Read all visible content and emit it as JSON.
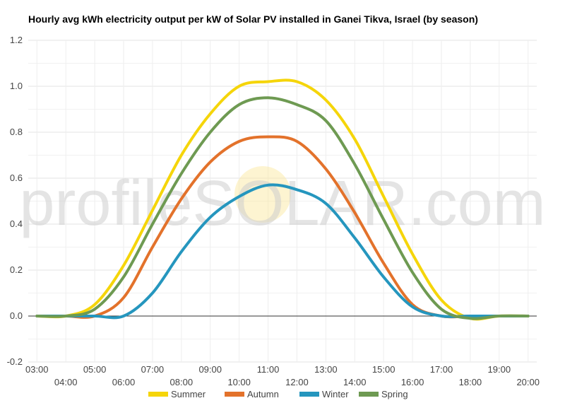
{
  "chart_data": {
    "type": "line",
    "title": "Hourly avg kWh electricity output per kW of Solar PV installed in Ganei Tikva, Israel (by season)",
    "xlabel": "",
    "ylabel": "",
    "watermark": "profileSOLAR.com",
    "ylim": [
      -0.2,
      1.2
    ],
    "yticks": [
      "-0.2",
      "0.0",
      "0.2",
      "0.4",
      "0.6",
      "0.8",
      "1.0",
      "1.2"
    ],
    "x_hours": [
      3,
      4,
      5,
      6,
      7,
      8,
      9,
      10,
      11,
      12,
      13,
      14,
      15,
      16,
      17,
      18,
      19,
      20
    ],
    "xtick_labels": [
      "03:00",
      "04:00",
      "05:00",
      "06:00",
      "07:00",
      "08:00",
      "09:00",
      "10:00",
      "11:00",
      "12:00",
      "13:00",
      "14:00",
      "15:00",
      "16:00",
      "17:00",
      "18:00",
      "19:00",
      "20:00"
    ],
    "grid": true,
    "legend_position": "bottom",
    "series": [
      {
        "name": "Summer",
        "color": "#f5d50a",
        "values": [
          0.0,
          0.0,
          0.05,
          0.22,
          0.46,
          0.7,
          0.88,
          1.0,
          1.02,
          1.02,
          0.94,
          0.77,
          0.52,
          0.27,
          0.07,
          -0.01,
          0.0,
          0.0
        ]
      },
      {
        "name": "Autumn",
        "color": "#e3722b",
        "values": [
          0.0,
          0.0,
          0.0,
          0.08,
          0.3,
          0.51,
          0.67,
          0.76,
          0.78,
          0.76,
          0.64,
          0.45,
          0.23,
          0.05,
          0.0,
          0.0,
          0.0,
          0.0
        ]
      },
      {
        "name": "Winter",
        "color": "#2596be",
        "values": [
          0.0,
          0.0,
          0.0,
          0.0,
          0.1,
          0.28,
          0.43,
          0.52,
          0.57,
          0.55,
          0.49,
          0.34,
          0.17,
          0.04,
          0.0,
          0.0,
          0.0,
          0.0
        ]
      },
      {
        "name": "Spring",
        "color": "#6e9a52",
        "values": [
          0.0,
          0.0,
          0.03,
          0.17,
          0.4,
          0.62,
          0.8,
          0.92,
          0.95,
          0.92,
          0.85,
          0.66,
          0.42,
          0.19,
          0.03,
          -0.01,
          0.0,
          0.0
        ]
      }
    ]
  }
}
